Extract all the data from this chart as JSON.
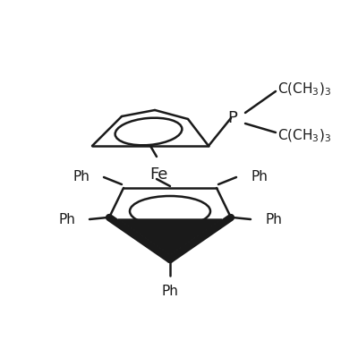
{
  "background_color": "#ffffff",
  "line_color": "#1a1a1a",
  "text_color": "#1a1a1a",
  "figsize": [
    4.0,
    4.0
  ],
  "dpi": 100,
  "title": "",
  "fe_label": "Fe",
  "p_label": "P",
  "ph_labels": [
    "Ph",
    "Ph",
    "Ph",
    "Ph",
    "Ph"
  ],
  "tbu_labels": [
    "C(CH₃)₃",
    "C(CH₃)₃"
  ],
  "lw": 1.8,
  "bold_lw": 6.0,
  "font_size": 11,
  "small_font": 10
}
